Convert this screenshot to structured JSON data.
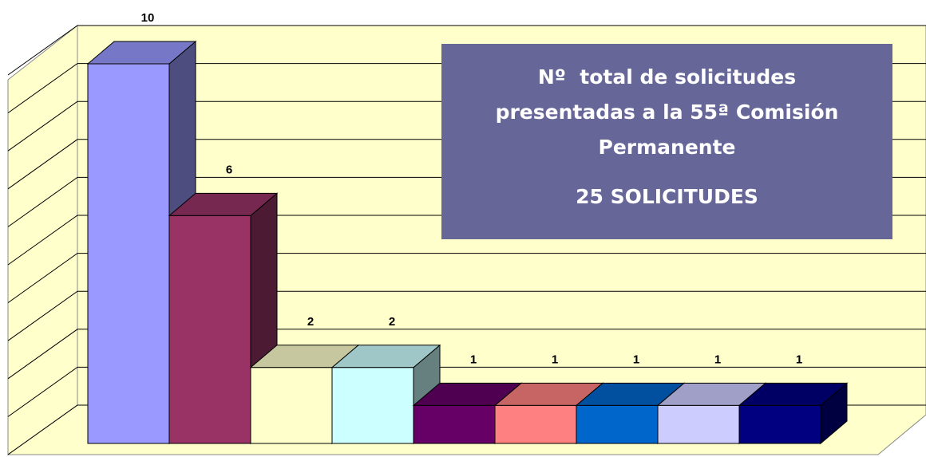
{
  "chart_data": {
    "type": "bar3d",
    "values": [
      10,
      6,
      2,
      2,
      1,
      1,
      1,
      1,
      1
    ],
    "colors": [
      "#9999ff",
      "#993366",
      "#ffffcc",
      "#ccffff",
      "#660066",
      "#ff8080",
      "#0066cc",
      "#ccccff",
      "#000080"
    ],
    "ylim": [
      0,
      10
    ],
    "yticks": [
      0,
      1,
      2,
      3,
      4,
      5,
      6,
      7,
      8,
      9,
      10
    ],
    "grid": true,
    "annotations": [
      "Nº  total de solicitudes presentadas a la 55ª Comisión Permanente",
      "25 SOLICITUDES"
    ]
  }
}
